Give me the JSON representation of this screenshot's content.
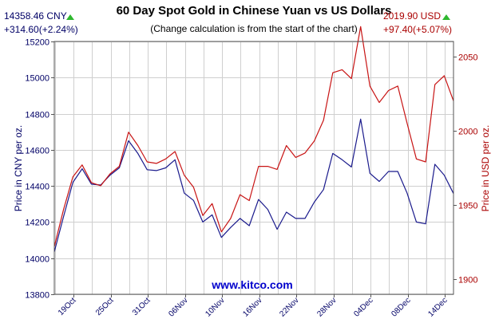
{
  "header": {
    "cny_price": "14358.46 CNY",
    "cny_change": "+314.60(+2.24%)",
    "usd_price": "2019.90 USD",
    "usd_change": "+97.40(+5.07%)",
    "title": "60 Day Spot Gold in Chinese Yuan vs US Dollars",
    "subtitle": "(Change calculation is from the start of the chart)",
    "up_color": "#2fb82f"
  },
  "watermark": "www.kitco.com",
  "chart_data": {
    "type": "line",
    "title": "60 Day Spot Gold in Chinese Yuan vs US Dollars",
    "subtitle": "(Change calculation is from the start of the chart)",
    "ylabel_left": "Price in CNY per oz.",
    "ylabel_right": "Price in USD per oz.",
    "ylim_left": [
      13800,
      15200
    ],
    "ylim_right": [
      1890,
      2060
    ],
    "yticks_left": [
      "13800",
      "14000",
      "14200",
      "14400",
      "14600",
      "14800",
      "15000",
      "15200"
    ],
    "yticks_right": [
      "1900",
      "1950",
      "2000",
      "2050"
    ],
    "xticks": [
      "19Oct",
      "25Oct",
      "31Oct",
      "06Nov",
      "10Nov",
      "16Nov",
      "22Nov",
      "28Nov",
      "04Dec",
      "08Dec",
      "14Dec"
    ],
    "grid": true,
    "series": [
      {
        "axis": "left",
        "color": "#1a1a8c",
        "values": [
          14035,
          14230,
          14420,
          14495,
          14410,
          14405,
          14460,
          14500,
          14650,
          14580,
          14490,
          14485,
          14500,
          14545,
          14360,
          14320,
          14200,
          14240,
          14115,
          14170,
          14220,
          14180,
          14325,
          14270,
          14160,
          14255,
          14220,
          14220,
          14310,
          14380,
          14580,
          14545,
          14505,
          14770,
          14470,
          14425,
          14480,
          14480,
          14360,
          14200,
          14190,
          14520,
          14460,
          14358
        ]
      },
      {
        "axis": "right",
        "color": "#c81414",
        "values": [
          1922,
          1947,
          1969,
          1977,
          1965,
          1963,
          1971,
          1976,
          1999,
          1990,
          1979,
          1978,
          1981,
          1986,
          1970,
          1962,
          1943,
          1951,
          1932,
          1941,
          1957,
          1953,
          1976,
          1976,
          1974,
          1990,
          1982,
          1985,
          1993,
          2007,
          2039,
          2041,
          2035,
          2070,
          2030,
          2019,
          2027,
          2030,
          2005,
          1981,
          1979,
          2031,
          2037,
          2020
        ]
      }
    ]
  }
}
